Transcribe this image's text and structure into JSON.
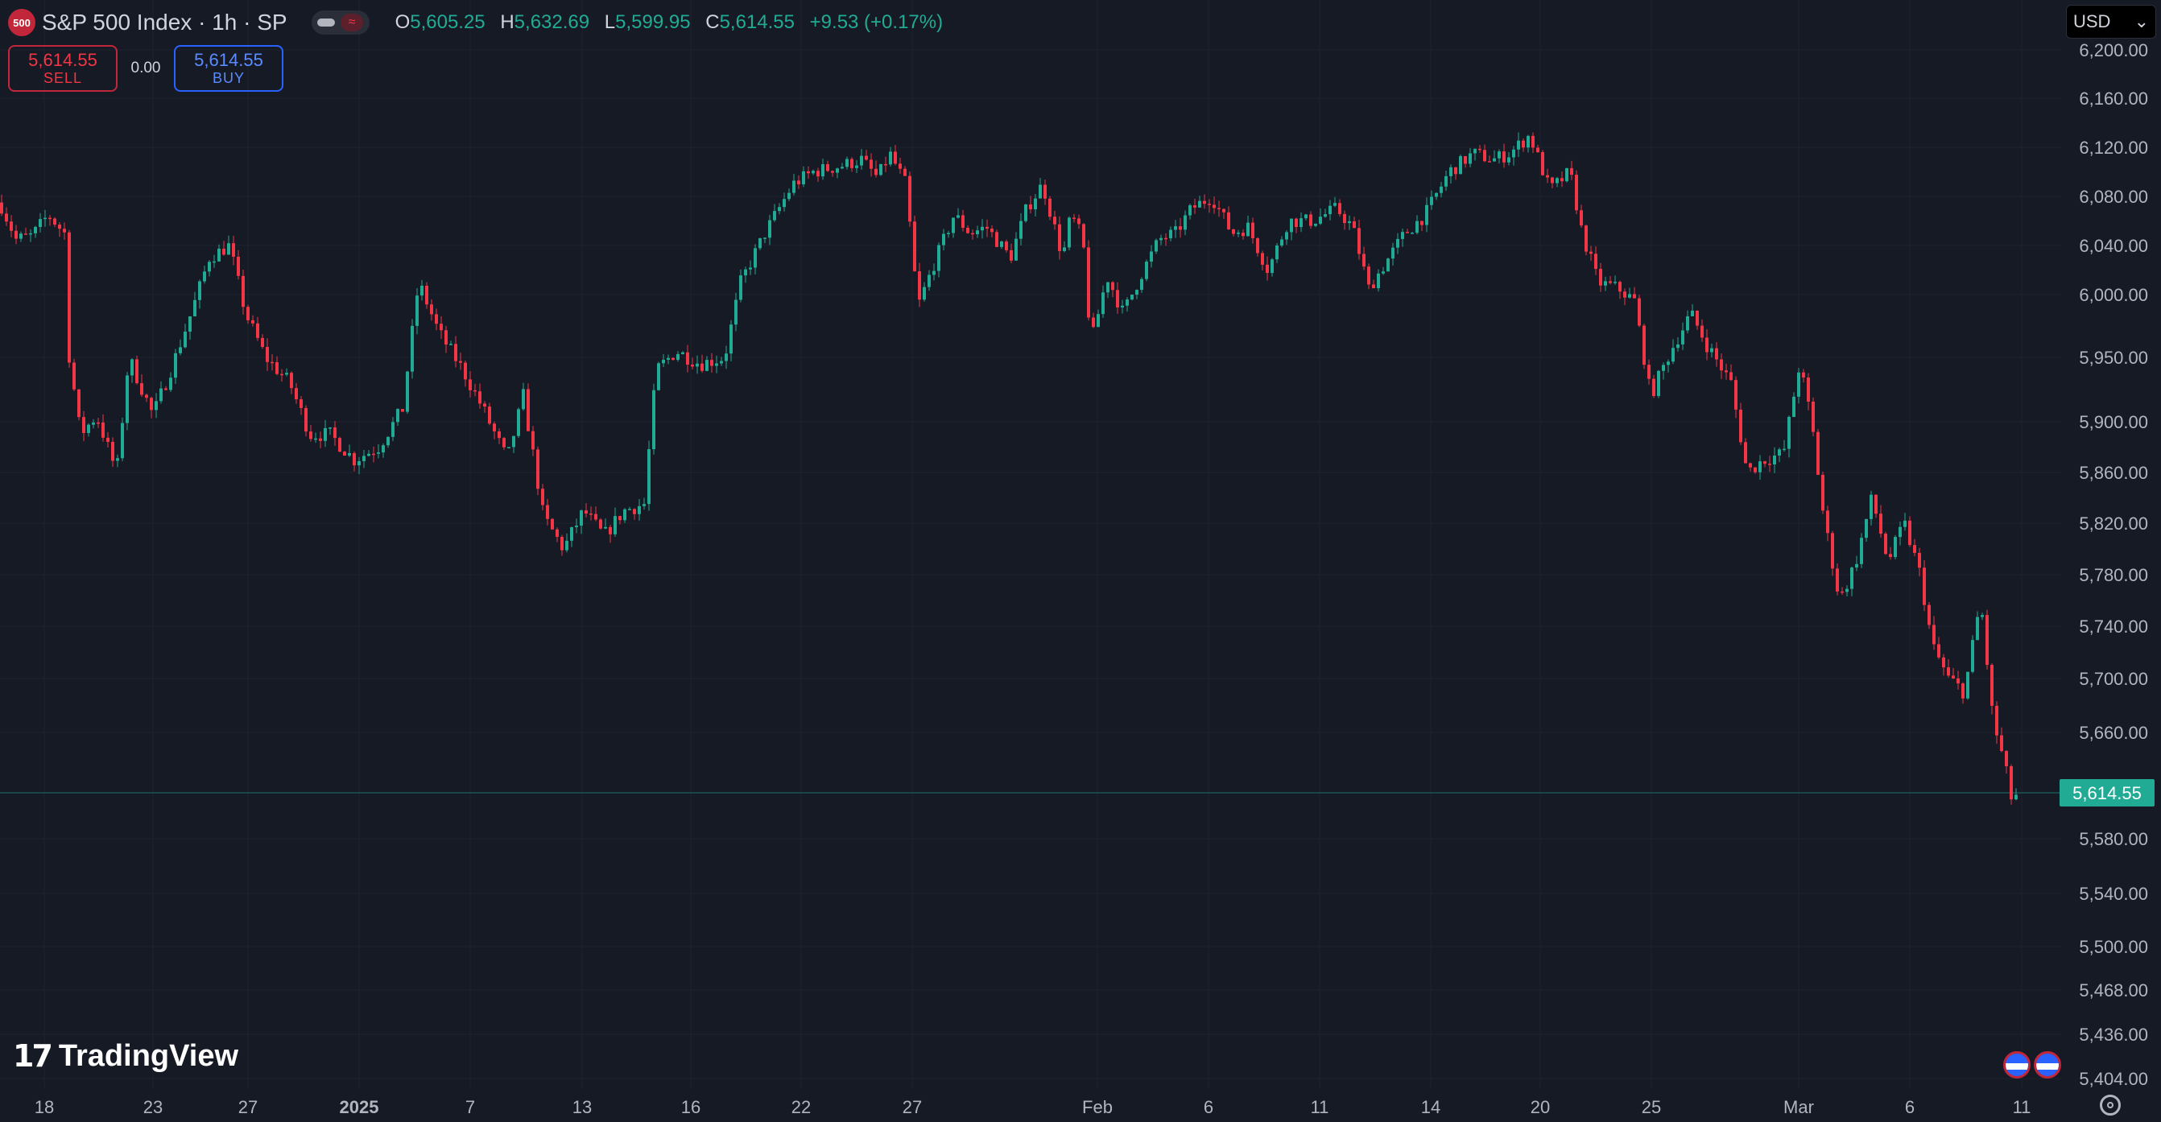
{
  "header": {
    "symbol_badge": "500",
    "title": "S&P 500 Index · 1h · SP",
    "toggle_icon": "≈",
    "ohlc": {
      "open_label": "O",
      "open": "5,605.25",
      "high_label": "H",
      "high": "5,632.69",
      "low_label": "L",
      "low": "5,599.95",
      "close_label": "C",
      "close": "5,614.55",
      "change": "+9.53 (+0.17%)"
    }
  },
  "trade": {
    "sell_price": "5,614.55",
    "sell_label": "SELL",
    "spread": "0.00",
    "buy_price": "5,614.55",
    "buy_label": "BUY"
  },
  "currency": "USD",
  "currency_chevron": "⌄",
  "watermark": {
    "logo": "17",
    "name": "TradingView"
  },
  "colors": {
    "up": "#22ab94",
    "down": "#f23645",
    "background": "#161a25",
    "grid": "#1f2330",
    "axis_text": "#b2b5be"
  },
  "chart_data": {
    "type": "candlestick",
    "timeframe": "1h",
    "y_ticks": [
      6200,
      6160,
      6120,
      6080,
      6040,
      6000,
      5950,
      5900,
      5860,
      5820,
      5780,
      5740,
      5700,
      5660,
      5580,
      5540,
      5500,
      5468,
      5436,
      5404
    ],
    "y_tick_labels": [
      "6,200.00",
      "6,160.00",
      "6,120.00",
      "6,080.00",
      "6,040.00",
      "6,000.00",
      "5,950.00",
      "5,900.00",
      "5,860.00",
      "5,820.00",
      "5,780.00",
      "5,740.00",
      "5,700.00",
      "5,660.00",
      "5,580.00",
      "5,540.00",
      "5,500.00",
      "5,468.00",
      "5,436.00",
      "5,404.00"
    ],
    "x_labels": [
      "18",
      "23",
      "27",
      "2025",
      "7",
      "13",
      "16",
      "22",
      "27",
      "Feb",
      "6",
      "11",
      "14",
      "20",
      "25",
      "Mar",
      "6",
      "11"
    ],
    "last_price": 5614.55,
    "last_price_label": "5,614.55",
    "trend": [
      [
        0,
        6075
      ],
      [
        20,
        6045
      ],
      [
        40,
        6048
      ],
      [
        60,
        6065
      ],
      [
        80,
        6050
      ],
      [
        84,
        5960
      ],
      [
        100,
        5890
      ],
      [
        120,
        5905
      ],
      [
        145,
        5860
      ],
      [
        160,
        5950
      ],
      [
        190,
        5905
      ],
      [
        215,
        5945
      ],
      [
        240,
        5990
      ],
      [
        260,
        6030
      ],
      [
        285,
        6040
      ],
      [
        305,
        5985
      ],
      [
        330,
        5950
      ],
      [
        360,
        5930
      ],
      [
        385,
        5890
      ],
      [
        410,
        5890
      ],
      [
        440,
        5870
      ],
      [
        470,
        5880
      ],
      [
        500,
        5910
      ],
      [
        520,
        6010
      ],
      [
        545,
        5970
      ],
      [
        575,
        5940
      ],
      [
        600,
        5910
      ],
      [
        630,
        5870
      ],
      [
        650,
        5920
      ],
      [
        675,
        5825
      ],
      [
        700,
        5800
      ],
      [
        725,
        5830
      ],
      [
        750,
        5810
      ],
      [
        775,
        5830
      ],
      [
        800,
        5835
      ],
      [
        815,
        5940
      ],
      [
        840,
        5955
      ],
      [
        870,
        5945
      ],
      [
        900,
        5950
      ],
      [
        920,
        6010
      ],
      [
        950,
        6050
      ],
      [
        985,
        6090
      ],
      [
        1010,
        6100
      ],
      [
        1045,
        6105
      ],
      [
        1070,
        6110
      ],
      [
        1090,
        6095
      ],
      [
        1105,
        6115
      ],
      [
        1125,
        6090
      ],
      [
        1140,
        5990
      ],
      [
        1160,
        6025
      ],
      [
        1185,
        6065
      ],
      [
        1205,
        6050
      ],
      [
        1225,
        6055
      ],
      [
        1255,
        6030
      ],
      [
        1275,
        6070
      ],
      [
        1295,
        6090
      ],
      [
        1320,
        6030
      ],
      [
        1330,
        6065
      ],
      [
        1345,
        6045
      ],
      [
        1355,
        5960
      ],
      [
        1375,
        6015
      ],
      [
        1395,
        5985
      ],
      [
        1420,
        6020
      ],
      [
        1440,
        6045
      ],
      [
        1460,
        6050
      ],
      [
        1480,
        6070
      ],
      [
        1505,
        6080
      ],
      [
        1530,
        6050
      ],
      [
        1550,
        6055
      ],
      [
        1575,
        6020
      ],
      [
        1600,
        6060
      ],
      [
        1630,
        6060
      ],
      [
        1660,
        6070
      ],
      [
        1680,
        6055
      ],
      [
        1700,
        6005
      ],
      [
        1725,
        6030
      ],
      [
        1745,
        6050
      ],
      [
        1770,
        6065
      ],
      [
        1800,
        6100
      ],
      [
        1830,
        6115
      ],
      [
        1855,
        6110
      ],
      [
        1875,
        6115
      ],
      [
        1900,
        6130
      ],
      [
        1925,
        6085
      ],
      [
        1950,
        6100
      ],
      [
        1965,
        6050
      ],
      [
        1985,
        6010
      ],
      [
        2010,
        6005
      ],
      [
        2030,
        5995
      ],
      [
        2050,
        5920
      ],
      [
        2075,
        5955
      ],
      [
        2100,
        5985
      ],
      [
        2120,
        5960
      ],
      [
        2150,
        5930
      ],
      [
        2170,
        5860
      ],
      [
        2190,
        5870
      ],
      [
        2215,
        5875
      ],
      [
        2235,
        5945
      ],
      [
        2250,
        5900
      ],
      [
        2265,
        5825
      ],
      [
        2285,
        5760
      ],
      [
        2305,
        5790
      ],
      [
        2325,
        5840
      ],
      [
        2345,
        5790
      ],
      [
        2365,
        5820
      ],
      [
        2385,
        5780
      ],
      [
        2400,
        5725
      ],
      [
        2420,
        5700
      ],
      [
        2440,
        5690
      ],
      [
        2460,
        5760
      ],
      [
        2475,
        5670
      ],
      [
        2490,
        5635
      ],
      [
        2500,
        5605
      ],
      [
        2505,
        5614.55
      ]
    ]
  }
}
